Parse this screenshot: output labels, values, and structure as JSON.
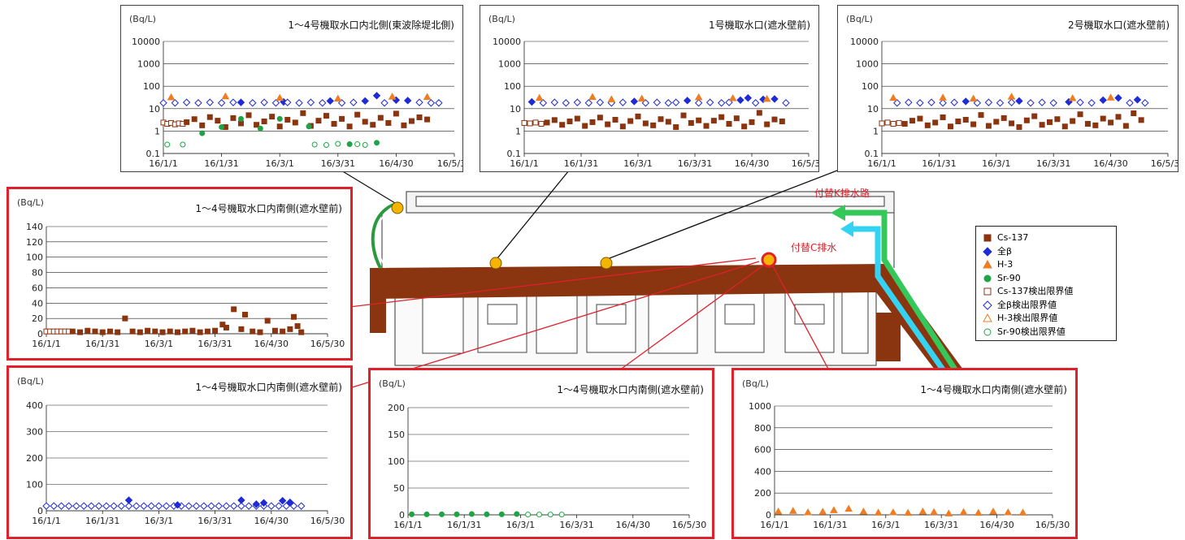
{
  "site": {
    "labels": [
      "付替K排水路",
      "付替C排水"
    ],
    "colors": {
      "building": "#8b3410",
      "green": "#34c759",
      "cyan": "#35d3f2",
      "red": "#e0202a",
      "marker": "#f4b400"
    }
  },
  "legend": {
    "entries": [
      {
        "label": "Cs-137",
        "shape": "square",
        "filled": true,
        "color": "#8b3410"
      },
      {
        "label": "全β",
        "shape": "diamond",
        "filled": true,
        "color": "#1f2bd6"
      },
      {
        "label": "H-3",
        "shape": "triangle",
        "filled": true,
        "color": "#f07c23"
      },
      {
        "label": "Sr-90",
        "shape": "circle",
        "filled": true,
        "color": "#1ea446"
      },
      {
        "label": "Cs-137検出限界値",
        "shape": "square",
        "filled": false,
        "color": "#8b3410"
      },
      {
        "label": "全β検出限界値",
        "shape": "diamond",
        "filled": false,
        "color": "#1f2bd6"
      },
      {
        "label": "H-3検出限界値",
        "shape": "triangle",
        "filled": false,
        "color": "#f07c23"
      },
      {
        "label": "Sr-90検出限界値",
        "shape": "circle",
        "filled": false,
        "color": "#1ea446"
      }
    ]
  },
  "chart_data": [
    {
      "id": "north",
      "type": "scatter",
      "title": "1～4号機取水口内北側(東波除堤北側)",
      "unit": "(Bq/L)",
      "yscale": "log",
      "ylim": [
        0.1,
        10000
      ],
      "yticks": [
        "0.1",
        "1",
        "10",
        "100",
        "1000",
        "10000"
      ],
      "xticks": [
        "16/1/1",
        "16/1/31",
        "16/3/1",
        "16/3/31",
        "16/4/30",
        "16/5/30"
      ],
      "series": [
        {
          "legend": "Cs-137検出限界値",
          "x": [
            0,
            2,
            4,
            6,
            8,
            10
          ],
          "y": [
            2.4,
            2.1,
            2.3,
            2.0,
            2.2,
            2.1
          ]
        },
        {
          "legend": "Cs-137",
          "x": [
            12,
            16,
            20,
            24,
            28,
            32,
            36,
            40,
            44,
            48,
            52,
            56,
            60,
            64,
            68,
            72,
            76,
            80,
            84,
            88,
            92,
            96,
            100,
            104,
            108,
            112,
            116,
            120,
            124,
            128,
            132,
            136
          ],
          "y": [
            2.5,
            3.4,
            1.8,
            4.2,
            2.9,
            1.5,
            3.8,
            2.2,
            5.1,
            1.9,
            2.7,
            4.4,
            1.6,
            3.2,
            2.4,
            6.3,
            1.7,
            2.9,
            4.8,
            2.1,
            3.5,
            1.6,
            5.4,
            2.6,
            1.9,
            3.9,
            2.3,
            6.0,
            1.8,
            2.8,
            4.1,
            3.3
          ]
        },
        {
          "legend": "全β",
          "x": [
            40,
            62,
            86,
            104,
            110,
            120,
            126
          ],
          "y": [
            19,
            20,
            22,
            22,
            38,
            24,
            23
          ]
        },
        {
          "legend": "全β検出限界値",
          "x": [
            0,
            6,
            12,
            18,
            24,
            30,
            36,
            46,
            52,
            58,
            64,
            70,
            76,
            82,
            92,
            98,
            114,
            132,
            138,
            142
          ],
          "y": [
            18,
            18,
            19,
            18,
            19,
            18,
            19,
            18,
            19,
            18,
            19,
            18,
            19,
            18,
            18,
            19,
            18,
            19,
            18,
            18
          ]
        },
        {
          "legend": "H-3",
          "x": [
            4,
            32,
            60,
            90,
            118,
            136
          ],
          "y": [
            32,
            35,
            30,
            28,
            34,
            33
          ]
        },
        {
          "legend": "Sr-90",
          "x": [
            20,
            30,
            40,
            50,
            60,
            75,
            96,
            110
          ],
          "y": [
            0.8,
            1.5,
            3.5,
            1.3,
            3.5,
            1.6,
            0.26,
            0.3
          ]
        },
        {
          "legend": "Sr-90検出限界値",
          "x": [
            2,
            10,
            78,
            84,
            90,
            100,
            104
          ],
          "y": [
            0.25,
            0.25,
            0.25,
            0.24,
            0.27,
            0.26,
            0.24
          ]
        }
      ]
    },
    {
      "id": "unit1",
      "type": "scatter",
      "title": "1号機取水口(遮水壁前)",
      "unit": "(Bq/L)",
      "yscale": "log",
      "ylim": [
        0.1,
        10000
      ],
      "yticks": [
        "0.1",
        "1",
        "10",
        "100",
        "1000",
        "10000"
      ],
      "xticks": [
        "16/1/1",
        "16/1/31",
        "16/3/1",
        "16/3/31",
        "16/4/30",
        "16/5/30"
      ],
      "series": [
        {
          "legend": "Cs-137検出限界値",
          "x": [
            0,
            3,
            6,
            9
          ],
          "y": [
            2.3,
            2.2,
            2.4,
            2.1
          ]
        },
        {
          "legend": "Cs-137",
          "x": [
            12,
            16,
            20,
            24,
            28,
            32,
            36,
            40,
            44,
            48,
            52,
            56,
            60,
            64,
            68,
            72,
            76,
            80,
            84,
            88,
            92,
            96,
            100,
            104,
            108,
            112,
            116,
            120,
            124,
            128,
            132,
            136
          ],
          "y": [
            2.4,
            3.1,
            1.9,
            2.7,
            3.6,
            1.7,
            2.5,
            4.0,
            2.0,
            3.2,
            1.6,
            2.8,
            4.5,
            2.2,
            1.8,
            3.4,
            2.6,
            1.5,
            5.0,
            2.3,
            3.0,
            1.7,
            2.9,
            4.2,
            2.1,
            3.7,
            1.6,
            2.5,
            6.5,
            2.0,
            3.3,
            2.7
          ]
        },
        {
          "legend": "全β",
          "x": [
            4,
            58,
            86,
            114,
            118,
            126,
            132
          ],
          "y": [
            20,
            21,
            23,
            24,
            30,
            26,
            27
          ]
        },
        {
          "legend": "全β検出限界値",
          "x": [
            10,
            16,
            22,
            28,
            34,
            40,
            46,
            52,
            64,
            70,
            76,
            80,
            92,
            98,
            104,
            108,
            122,
            138
          ],
          "y": [
            18,
            19,
            18,
            19,
            18,
            19,
            18,
            19,
            18,
            19,
            18,
            19,
            18,
            19,
            18,
            19,
            18,
            18
          ]
        },
        {
          "legend": "H-3",
          "x": [
            8,
            36,
            46,
            62,
            92,
            110,
            128
          ],
          "y": [
            30,
            33,
            26,
            28,
            32,
            29,
            27
          ]
        }
      ]
    },
    {
      "id": "unit2",
      "type": "scatter",
      "title": "2号機取水口(遮水壁前)",
      "unit": "(Bq/L)",
      "yscale": "log",
      "ylim": [
        0.1,
        10000
      ],
      "yticks": [
        "0.1",
        "1",
        "10",
        "100",
        "1000",
        "10000"
      ],
      "xticks": [
        "16/1/1",
        "16/1/31",
        "16/3/1",
        "16/3/31",
        "16/4/30",
        "16/5/30"
      ],
      "series": [
        {
          "legend": "Cs-137検出限界値",
          "x": [
            0,
            3,
            6,
            9
          ],
          "y": [
            2.2,
            2.4,
            2.1,
            2.3
          ]
        },
        {
          "legend": "Cs-137",
          "x": [
            12,
            16,
            20,
            24,
            28,
            32,
            36,
            40,
            44,
            48,
            52,
            56,
            60,
            64,
            68,
            72,
            76,
            80,
            84,
            88,
            92,
            96,
            100,
            104,
            108,
            112,
            116,
            120,
            124,
            128,
            132,
            136
          ],
          "y": [
            2.1,
            2.9,
            3.6,
            1.8,
            2.4,
            4.1,
            1.6,
            2.7,
            3.2,
            2.0,
            5.2,
            1.7,
            2.6,
            3.8,
            2.2,
            1.5,
            3.0,
            4.6,
            1.9,
            2.5,
            3.4,
            1.6,
            2.8,
            5.6,
            2.1,
            1.8,
            3.6,
            2.4,
            4.3,
            1.7,
            6.2,
            3.1
          ]
        },
        {
          "legend": "全β",
          "x": [
            44,
            72,
            98,
            116,
            124,
            134
          ],
          "y": [
            21,
            22,
            20,
            24,
            30,
            25
          ]
        },
        {
          "legend": "全β検出限界値",
          "x": [
            8,
            14,
            20,
            26,
            32,
            38,
            50,
            56,
            62,
            68,
            78,
            84,
            90,
            104,
            110,
            130,
            138
          ],
          "y": [
            18,
            19,
            18,
            19,
            18,
            19,
            18,
            19,
            18,
            19,
            18,
            19,
            18,
            19,
            18,
            18,
            18
          ]
        },
        {
          "legend": "H-3",
          "x": [
            6,
            32,
            48,
            68,
            100,
            120
          ],
          "y": [
            30,
            31,
            28,
            34,
            29,
            31
          ]
        }
      ]
    },
    {
      "id": "south-cs",
      "type": "scatter",
      "title": "1～4号機取水口内南側(遮水壁前)",
      "unit": "(Bq/L)",
      "yscale": "linear",
      "ylim": [
        0,
        140
      ],
      "yticks": [
        "0",
        "20",
        "40",
        "60",
        "80",
        "100",
        "120",
        "140"
      ],
      "xticks": [
        "16/1/1",
        "16/1/31",
        "16/3/1",
        "16/3/31",
        "16/4/30",
        "16/5/30"
      ],
      "series": [
        {
          "legend": "Cs-137検出限界値",
          "x": [
            0,
            2,
            4,
            6,
            8,
            10,
            12
          ],
          "y": [
            3,
            3,
            3,
            3,
            3,
            3,
            3
          ]
        },
        {
          "legend": "Cs-137",
          "x": [
            14,
            18,
            22,
            26,
            30,
            34,
            38,
            42,
            46,
            50,
            54,
            58,
            62,
            66,
            70,
            74,
            78,
            82,
            86,
            90,
            94,
            96,
            100,
            104,
            106,
            110,
            114,
            118,
            122,
            126,
            130,
            132,
            134,
            136
          ],
          "y": [
            3,
            2,
            4,
            3,
            2,
            3,
            2,
            20,
            3,
            2,
            4,
            3,
            2,
            3,
            2,
            3,
            4,
            2,
            3,
            4,
            12,
            8,
            32,
            6,
            25,
            3,
            2,
            17,
            4,
            3,
            6,
            22,
            10,
            2
          ]
        }
      ]
    },
    {
      "id": "south-beta",
      "type": "scatter",
      "title": "1～4号機取水口内南側(遮水壁前)",
      "unit": "(Bq/L)",
      "yscale": "linear",
      "ylim": [
        0,
        400
      ],
      "yticks": [
        "0",
        "100",
        "200",
        "300",
        "400"
      ],
      "xticks": [
        "16/1/1",
        "16/1/31",
        "16/3/1",
        "16/3/31",
        "16/4/30",
        "16/5/30"
      ],
      "series": [
        {
          "legend": "全β検出限界値",
          "x": [
            0,
            4,
            8,
            12,
            16,
            20,
            24,
            28,
            32,
            36,
            40,
            44,
            48,
            52,
            56,
            60,
            64,
            68,
            72,
            76,
            80,
            84,
            88,
            92,
            96,
            100,
            104,
            108,
            112,
            116,
            120,
            124,
            128,
            132,
            136
          ],
          "y": [
            18,
            18,
            18,
            18,
            18,
            18,
            18,
            18,
            18,
            18,
            18,
            18,
            18,
            18,
            18,
            18,
            18,
            18,
            18,
            18,
            18,
            18,
            18,
            18,
            18,
            18,
            18,
            18,
            18,
            18,
            18,
            18,
            18,
            18,
            18
          ]
        },
        {
          "legend": "全β",
          "x": [
            44,
            70,
            104,
            112,
            116,
            126,
            130
          ],
          "y": [
            40,
            22,
            40,
            25,
            30,
            38,
            32
          ]
        }
      ]
    },
    {
      "id": "south-sr",
      "type": "scatter",
      "title": "1～4号機取水口内南側(遮水壁前)",
      "unit": "(Bq/L)",
      "yscale": "linear",
      "ylim": [
        0,
        200
      ],
      "yticks": [
        "0",
        "50",
        "100",
        "150",
        "200"
      ],
      "xticks": [
        "16/1/1",
        "16/1/31",
        "16/3/1",
        "16/3/31",
        "16/4/30",
        "16/5/30"
      ],
      "series": [
        {
          "legend": "Sr-90",
          "x": [
            2,
            10,
            18,
            26,
            34,
            42,
            50,
            58
          ],
          "y": [
            1,
            1,
            1,
            1,
            1.5,
            1,
            1,
            1.5
          ]
        },
        {
          "legend": "Sr-90検出限界値",
          "x": [
            64,
            70,
            76,
            82
          ],
          "y": [
            0.5,
            0.5,
            0.5,
            0.5
          ]
        }
      ]
    },
    {
      "id": "south-h3",
      "type": "scatter",
      "title": "1～4号機取水口内南側(遮水壁前)",
      "unit": "(Bq/L)",
      "yscale": "linear",
      "ylim": [
        0,
        1000
      ],
      "yticks": [
        "0",
        "200",
        "400",
        "600",
        "800",
        "1000"
      ],
      "xticks": [
        "16/1/1",
        "16/1/31",
        "16/3/1",
        "16/3/31",
        "16/4/30",
        "16/5/30"
      ],
      "series": [
        {
          "legend": "H-3",
          "x": [
            2,
            10,
            18,
            26,
            32,
            40,
            48,
            56,
            64,
            72,
            80,
            86,
            94,
            102,
            110,
            118,
            126,
            134
          ],
          "y": [
            30,
            35,
            22,
            28,
            42,
            55,
            30,
            20,
            22,
            18,
            30,
            25,
            12,
            25,
            18,
            30,
            22,
            20
          ]
        }
      ]
    }
  ]
}
